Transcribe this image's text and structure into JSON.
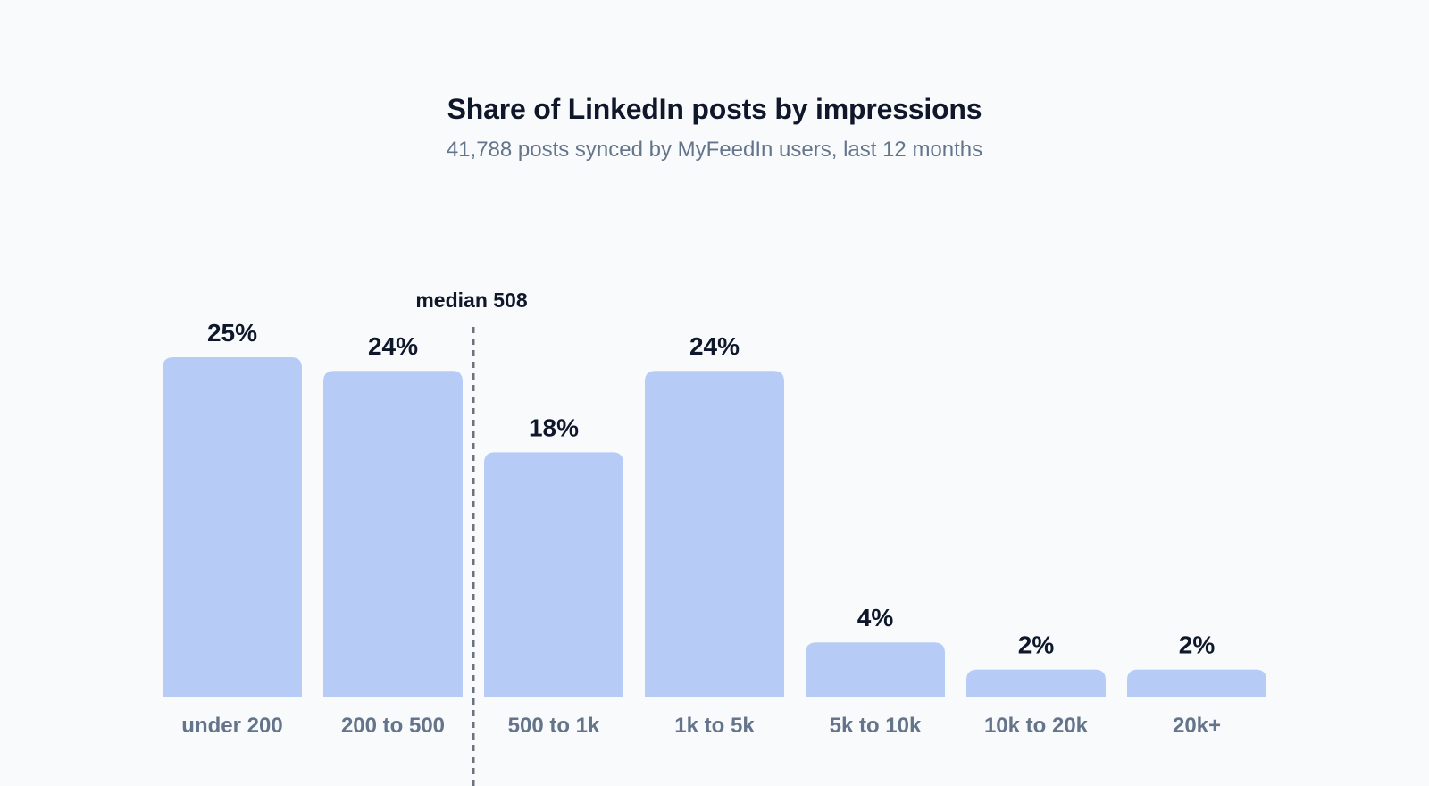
{
  "chart_data": {
    "type": "bar",
    "title": "Share of LinkedIn posts by impressions",
    "subtitle": "41,788 posts synced by MyFeedIn users, last 12 months",
    "xlabel": "",
    "ylabel": "",
    "categories": [
      "under 200",
      "200 to 500",
      "500 to 1k",
      "1k to 5k",
      "5k to 10k",
      "10k to 20k",
      "20k+"
    ],
    "values": [
      25,
      24,
      18,
      24,
      4,
      2,
      2
    ],
    "value_labels": [
      "25%",
      "24%",
      "18%",
      "24%",
      "4%",
      "2%",
      "2%"
    ],
    "unit": "%",
    "ylim": [
      0,
      25
    ],
    "grid": false,
    "legend": "none",
    "bar_color": "#b7cbf7",
    "annotations": [
      {
        "type": "reference-line",
        "label": "median 508",
        "value": 508,
        "position": "between 200 to 500 and 500 to 1k",
        "style": "dashed"
      }
    ]
  }
}
